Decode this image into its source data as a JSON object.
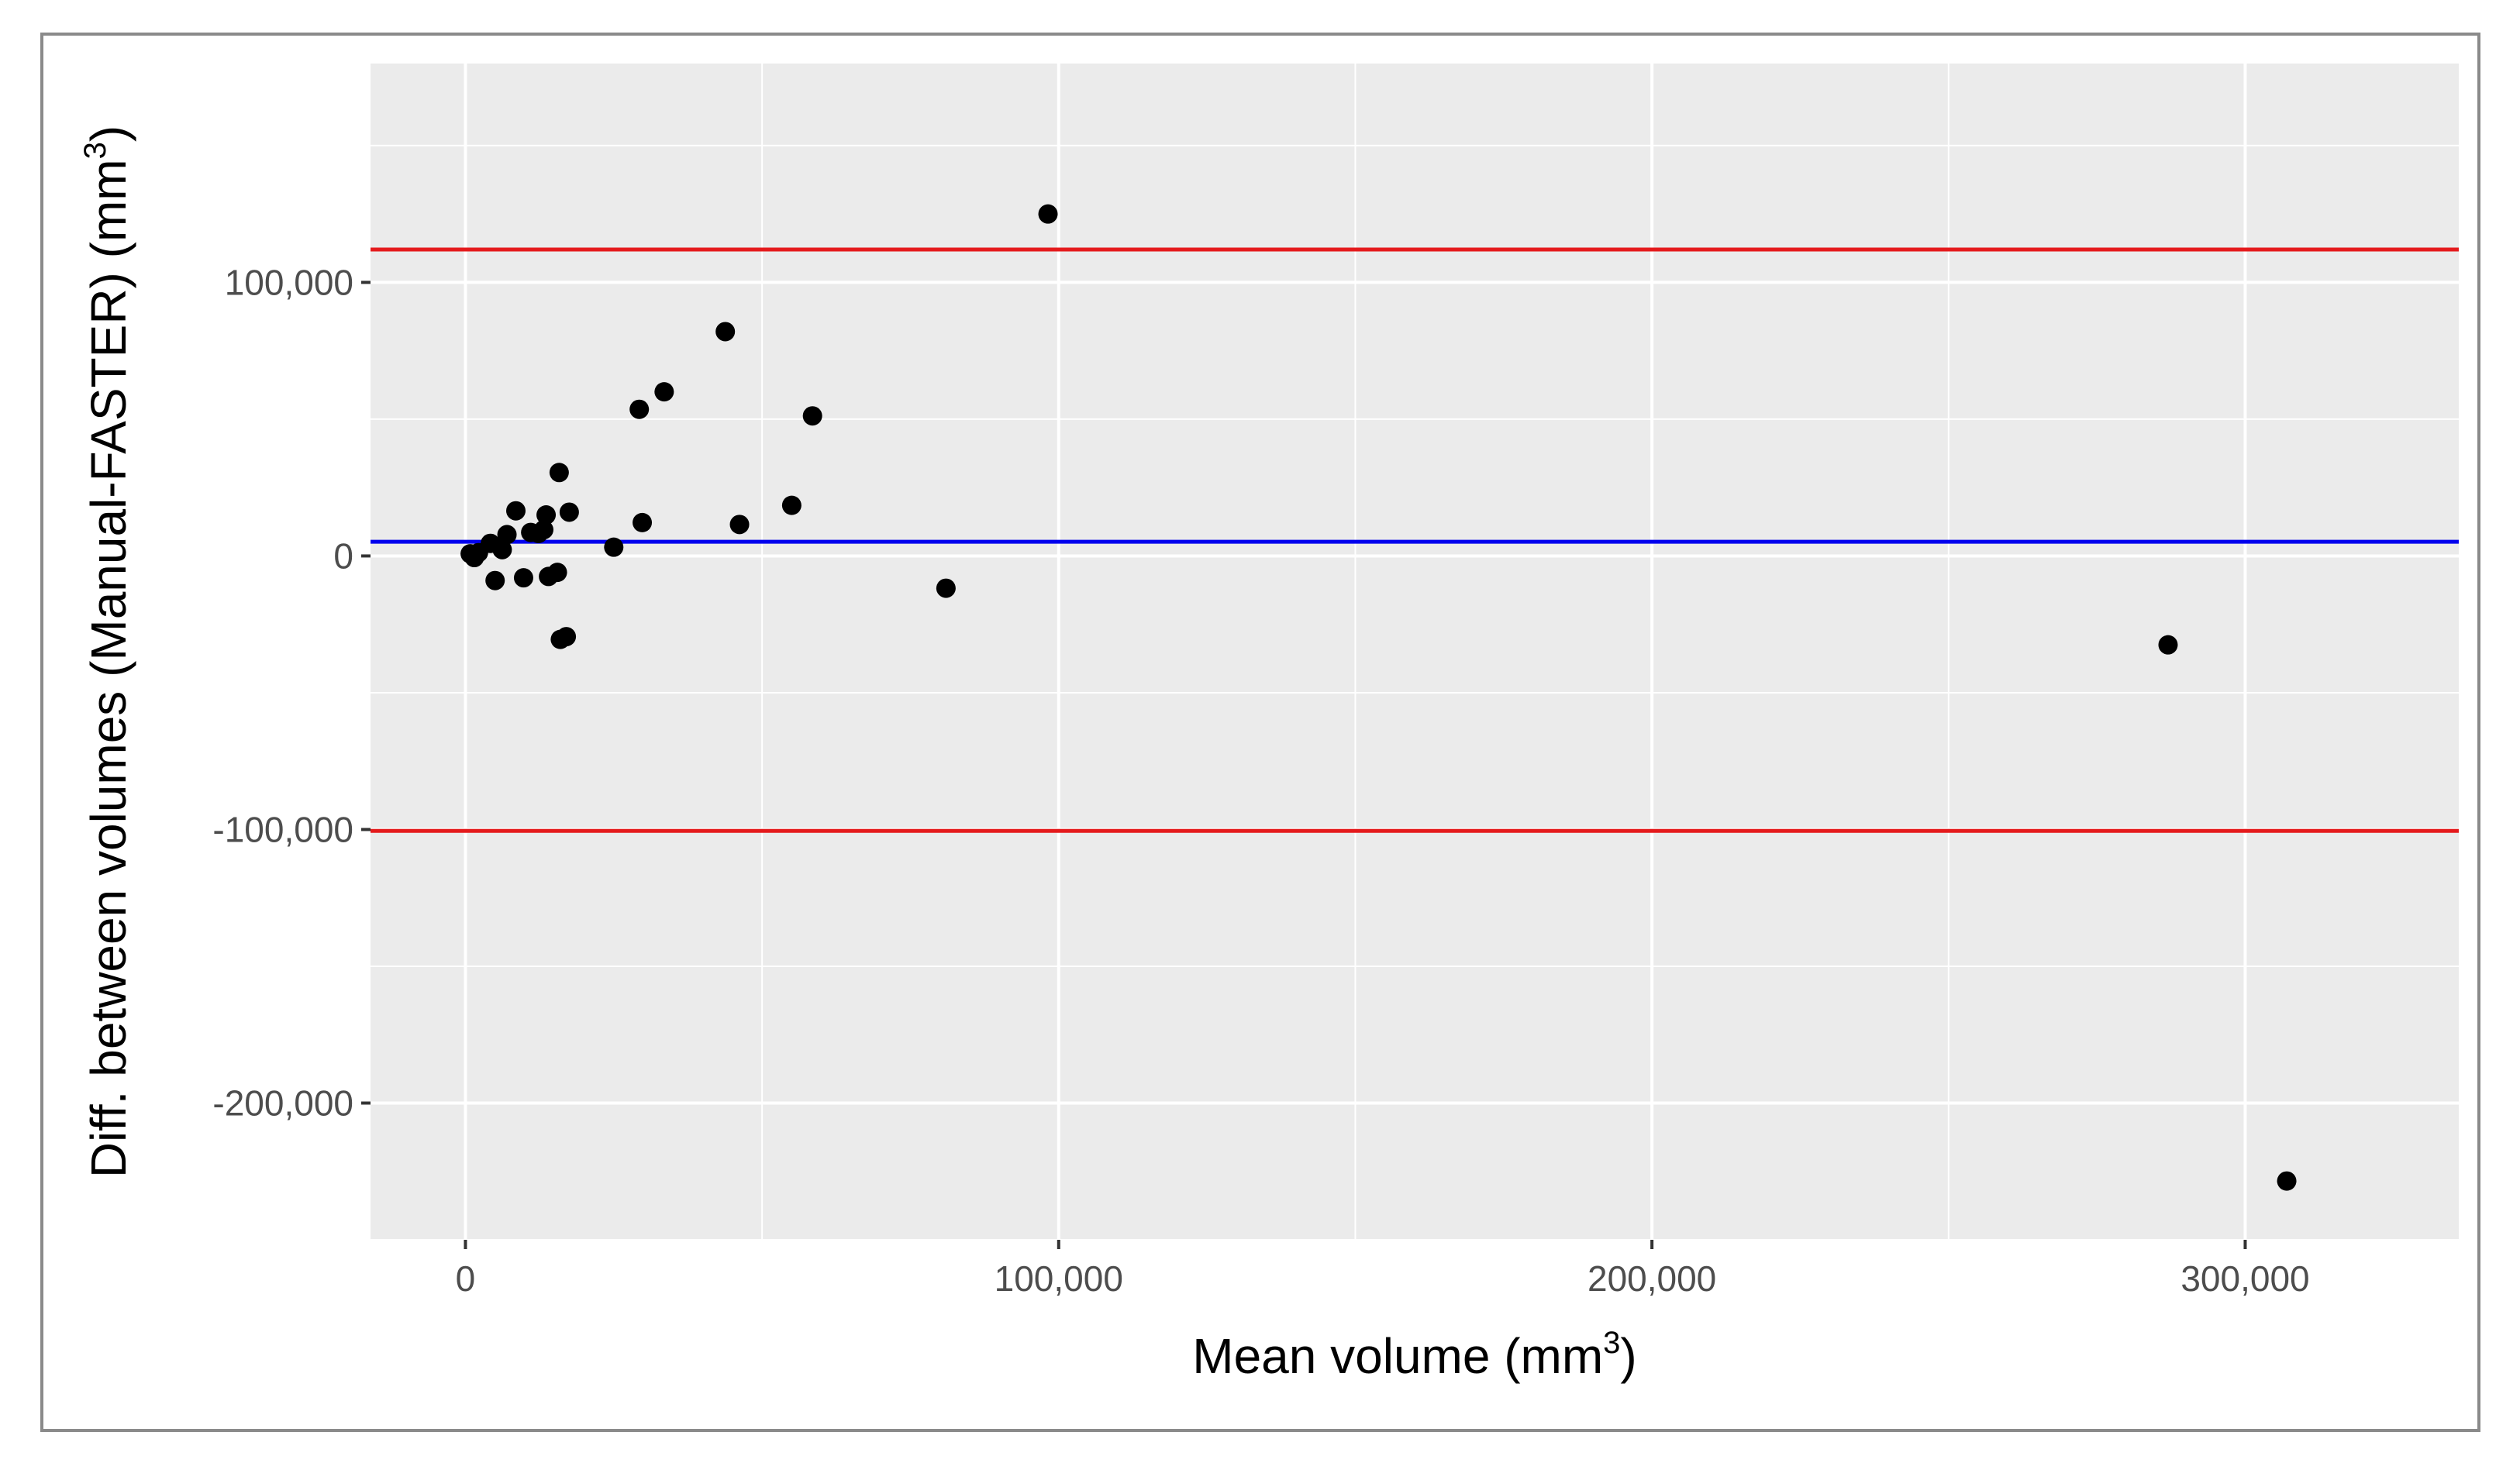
{
  "chart_data": {
    "type": "scatter",
    "title": "",
    "xlabel": "Mean volume",
    "xlabel_unit": "mm",
    "xlabel_unit_power": "3",
    "ylabel": "Diff. between volumes (Manual-FASTER)",
    "ylabel_unit": "mm",
    "ylabel_unit_power": "3",
    "xlim": [
      -16000,
      336000
    ],
    "ylim": [
      -250000,
      180000
    ],
    "x_ticks": [
      0,
      100000,
      200000,
      300000
    ],
    "x_tick_labels": [
      "0",
      "100,000",
      "200,000",
      "300,000"
    ],
    "y_ticks": [
      -200000,
      -100000,
      0,
      100000
    ],
    "y_tick_labels": [
      "-200,000",
      "-100,000",
      "0",
      "100,000"
    ],
    "grid": true,
    "background": "#ebebeb",
    "point_color": "#000000",
    "reference_lines": [
      {
        "y": 112000,
        "color": "#e41a1c"
      },
      {
        "y": 5200,
        "color": "#0000ee"
      },
      {
        "y": -100500,
        "color": "#e41a1c"
      }
    ],
    "points": [
      {
        "x": 800,
        "y": 800
      },
      {
        "x": 1500,
        "y": -600
      },
      {
        "x": 2200,
        "y": 1200
      },
      {
        "x": 4200,
        "y": 4600
      },
      {
        "x": 5000,
        "y": -9000
      },
      {
        "x": 6200,
        "y": 2300
      },
      {
        "x": 7000,
        "y": 7800
      },
      {
        "x": 8500,
        "y": 16500
      },
      {
        "x": 9800,
        "y": -8000
      },
      {
        "x": 11000,
        "y": 8600
      },
      {
        "x": 12300,
        "y": 8200
      },
      {
        "x": 13200,
        "y": 9600
      },
      {
        "x": 13600,
        "y": 15000
      },
      {
        "x": 14000,
        "y": -7500
      },
      {
        "x": 15500,
        "y": -6000
      },
      {
        "x": 15800,
        "y": 30500
      },
      {
        "x": 16000,
        "y": -30500
      },
      {
        "x": 17000,
        "y": -29500
      },
      {
        "x": 17500,
        "y": 16000
      },
      {
        "x": 25000,
        "y": 3200
      },
      {
        "x": 29300,
        "y": 53600
      },
      {
        "x": 29800,
        "y": 12200
      },
      {
        "x": 33500,
        "y": 60000
      },
      {
        "x": 43800,
        "y": 82000
      },
      {
        "x": 46200,
        "y": 11500
      },
      {
        "x": 55000,
        "y": 18500
      },
      {
        "x": 58500,
        "y": 51200
      },
      {
        "x": 81000,
        "y": -11800
      },
      {
        "x": 98200,
        "y": 125000
      },
      {
        "x": 287000,
        "y": -32500
      },
      {
        "x": 307000,
        "y": -228500
      }
    ]
  }
}
